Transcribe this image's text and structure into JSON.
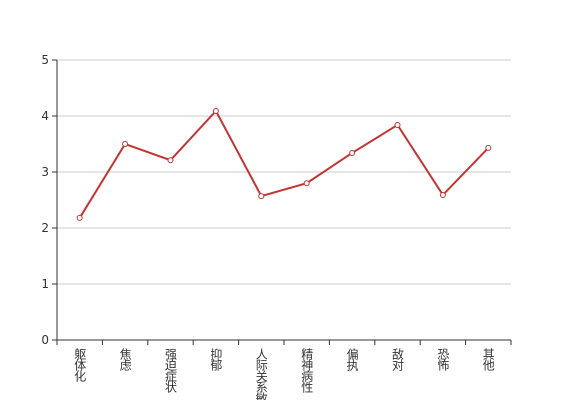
{
  "chart_data": {
    "type": "line",
    "categories": [
      "躯体化",
      "焦虑",
      "强迫症状",
      "抑郁",
      "人际关系敏感",
      "精神病性",
      "偏执",
      "敌对",
      "恐怖",
      "其他"
    ],
    "series": [
      {
        "color": "#c23531",
        "values": [
          2.18,
          3.5,
          3.21,
          4.09,
          2.57,
          2.8,
          3.34,
          3.84,
          2.59,
          3.43
        ]
      }
    ],
    "ylim": [
      0,
      5
    ],
    "yticks": [
      0,
      1,
      2,
      3,
      4,
      5
    ],
    "grid": true
  }
}
